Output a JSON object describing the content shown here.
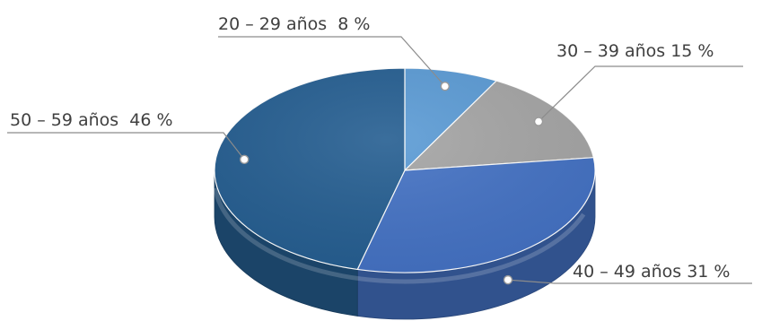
{
  "chart_data": {
    "type": "pie",
    "title": "",
    "slices": [
      {
        "label": "20 – 29 años  8 %",
        "category": "20 – 29 años",
        "value": 8,
        "color": "#5b9bd5"
      },
      {
        "label": "30 – 39 años 15 %",
        "category": "30 – 39 años",
        "value": 15,
        "color": "#a5a5a5"
      },
      {
        "label": "40 – 49 años 31 %",
        "category": "40 – 49 años",
        "value": 31,
        "color": "#4472c4"
      },
      {
        "label": "50 – 59 años  46 %",
        "category": "50 – 59 años",
        "value": 46,
        "color": "#255e91"
      }
    ],
    "legend": "none",
    "labels": "outside-with-leader-lines",
    "style": "3d"
  }
}
